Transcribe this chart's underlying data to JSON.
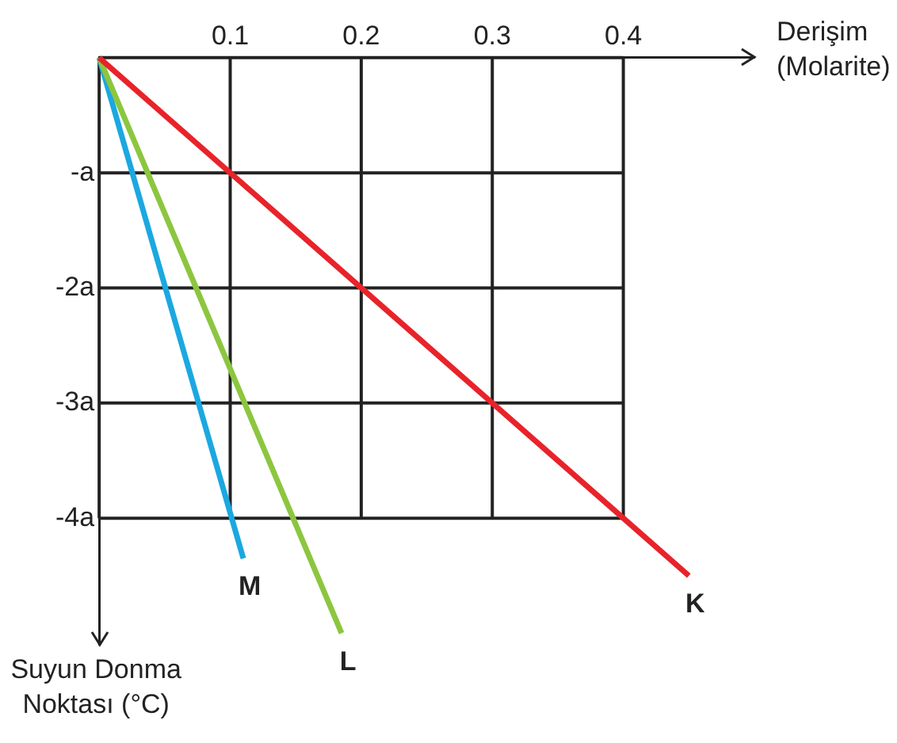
{
  "chart_data": {
    "type": "line",
    "xlabel": "Derişim (Molarite)",
    "ylabel": "Suyun Donma Noktası (°C)",
    "xlim": [
      0,
      0.5
    ],
    "ylim": [
      -5.1,
      0
    ],
    "xticks": [
      {
        "value": 0,
        "label": null
      },
      0.1,
      0.2,
      0.3,
      0.4
    ],
    "yticks": [
      {
        "value": 0,
        "label": null
      },
      {
        "value": -1,
        "label": "-a"
      },
      {
        "value": -2,
        "label": "-2a"
      },
      {
        "value": -3,
        "label": "-3a"
      },
      {
        "value": -4,
        "label": "-4a"
      }
    ],
    "grid": true,
    "legend": false,
    "marker": "none",
    "line_style": "solid",
    "series": [
      {
        "name": "K",
        "color": "#e8232a",
        "x": [
          0,
          0.45
        ],
        "values": [
          0,
          -4.5
        ]
      },
      {
        "name": "L",
        "color": "#8cc63f",
        "x": [
          0,
          0.185
        ],
        "values": [
          0,
          -5
        ]
      },
      {
        "name": "M",
        "color": "#1ba8e0",
        "x": [
          0,
          0.11
        ],
        "values": [
          0,
          -4.35
        ]
      }
    ]
  }
}
